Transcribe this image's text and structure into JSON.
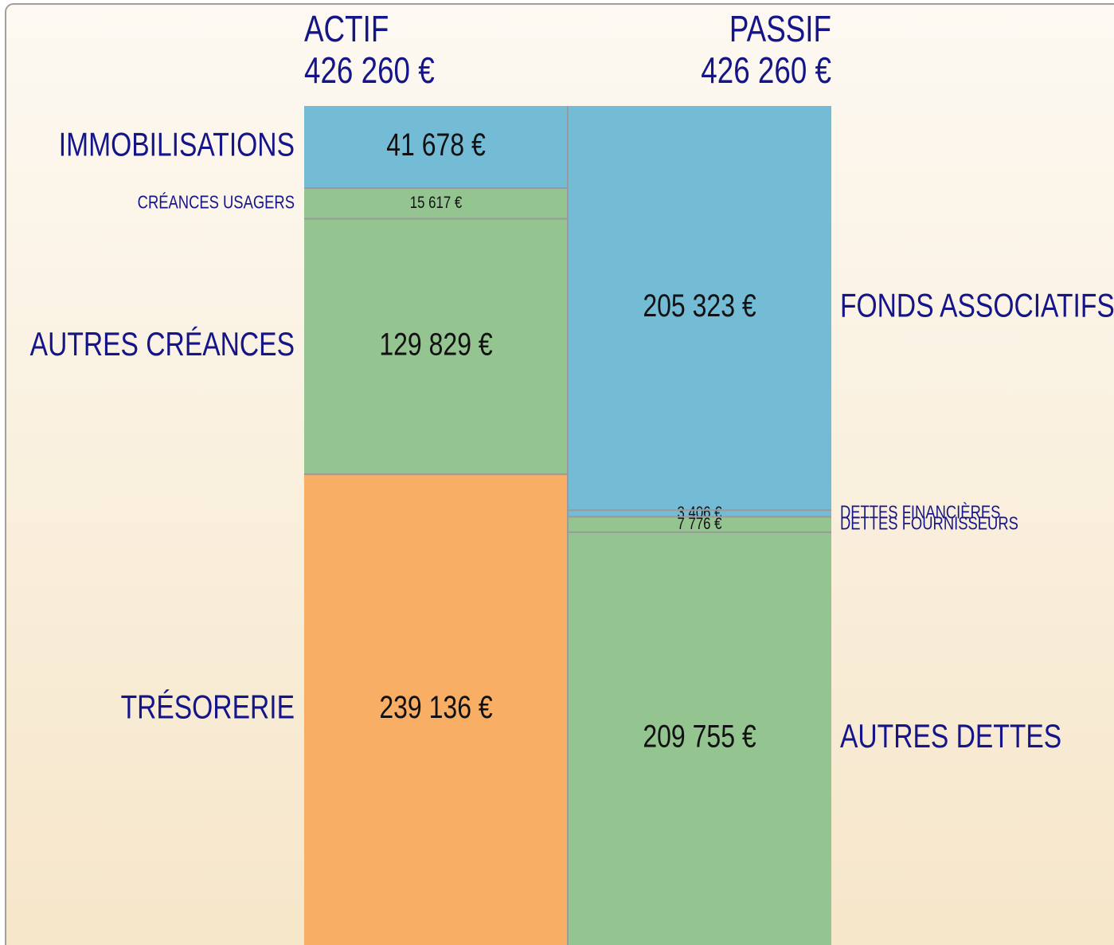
{
  "chart_data": {
    "type": "stacked-column",
    "columns": [
      {
        "name": "ACTIF",
        "total": 426260,
        "total_label": "426 260 €",
        "segments": [
          {
            "name": "IMMOBILISATIONS",
            "value": 41678,
            "value_label": "41 678 €",
            "color": "#74bcd6"
          },
          {
            "name": "CRÉANCES USAGERS",
            "value": 15617,
            "value_label": "15 617 €",
            "color": "#94c490"
          },
          {
            "name": "AUTRES CRÉANCES",
            "value": 129829,
            "value_label": "129 829 €",
            "color": "#94c490"
          },
          {
            "name": "TRÉSORERIE",
            "value": 239136,
            "value_label": "239 136 €",
            "color": "#f9ae66"
          }
        ]
      },
      {
        "name": "PASSIF",
        "total": 426260,
        "total_label": "426 260 €",
        "segments": [
          {
            "name": "FONDS ASSOCIATIFS",
            "value": 205323,
            "value_label": "205 323 €",
            "color": "#74bcd6"
          },
          {
            "name": "DETTES FINANCIÈRES",
            "value": 3406,
            "value_label": "3 406 €",
            "color": "#74bcd6"
          },
          {
            "name": "DETTES FOURNISSEURS",
            "value": 7776,
            "value_label": "7 776 €",
            "color": "#94c490"
          },
          {
            "name": "AUTRES DETTES",
            "value": 209755,
            "value_label": "209 755 €",
            "color": "#94c490"
          }
        ]
      }
    ]
  }
}
